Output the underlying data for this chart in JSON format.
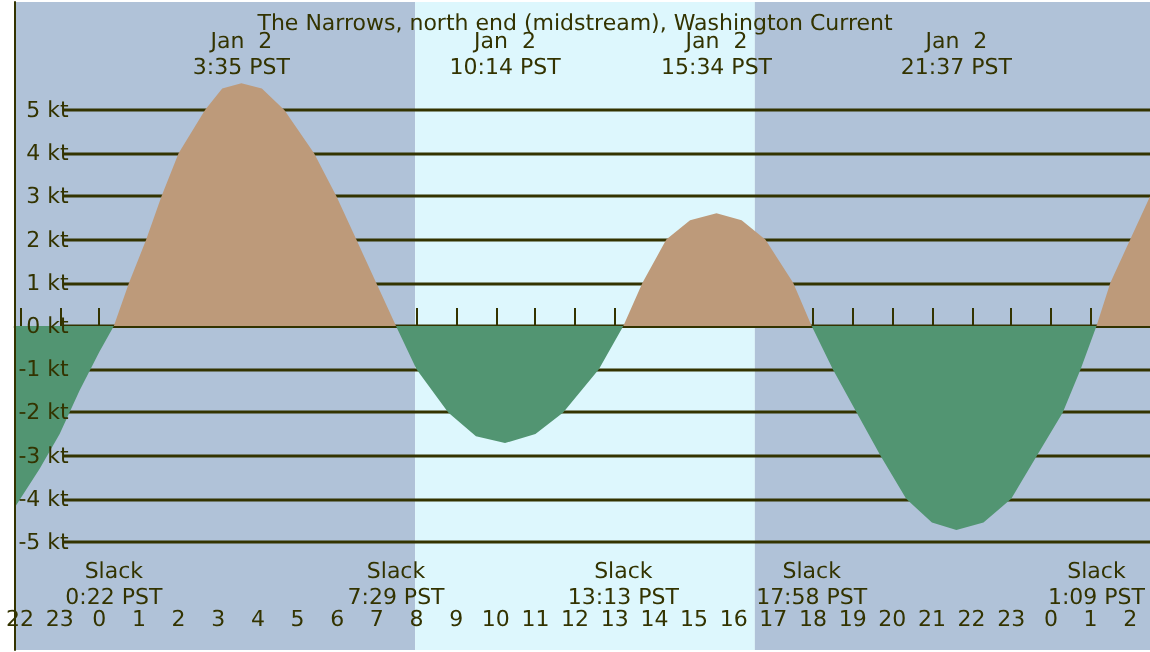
{
  "chart_data": {
    "type": "area",
    "title": "The Narrows, north end (midstream), Washington Current",
    "xlim": [
      "--01-01T21:52",
      "--01-03T02:30"
    ],
    "xticks": [
      {
        "value": "--01-01T22:00",
        "label": "22"
      },
      {
        "value": "--01-01T23:00",
        "label": "23"
      },
      {
        "value": "--01-02T00:00",
        "label": "0"
      },
      {
        "value": "--01-02T01:00",
        "label": "1"
      },
      {
        "value": "--01-02T02:00",
        "label": "2"
      },
      {
        "value": "--01-02T03:00",
        "label": "3"
      },
      {
        "value": "--01-02T04:00",
        "label": "4"
      },
      {
        "value": "--01-02T05:00",
        "label": "5"
      },
      {
        "value": "--01-02T06:00",
        "label": "6"
      },
      {
        "value": "--01-02T07:00",
        "label": "7"
      },
      {
        "value": "--01-02T08:00",
        "label": "8"
      },
      {
        "value": "--01-02T09:00",
        "label": "9"
      },
      {
        "value": "--01-02T10:00",
        "label": "10"
      },
      {
        "value": "--01-02T11:00",
        "label": "11"
      },
      {
        "value": "--01-02T12:00",
        "label": "12"
      },
      {
        "value": "--01-02T13:00",
        "label": "13"
      },
      {
        "value": "--01-02T14:00",
        "label": "14"
      },
      {
        "value": "--01-02T15:00",
        "label": "15"
      },
      {
        "value": "--01-02T16:00",
        "label": "16"
      },
      {
        "value": "--01-02T17:00",
        "label": "17"
      },
      {
        "value": "--01-02T18:00",
        "label": "18"
      },
      {
        "value": "--01-02T19:00",
        "label": "19"
      },
      {
        "value": "--01-02T20:00",
        "label": "20"
      },
      {
        "value": "--01-02T21:00",
        "label": "21"
      },
      {
        "value": "--01-02T22:00",
        "label": "22"
      },
      {
        "value": "--01-02T23:00",
        "label": "23"
      },
      {
        "value": "--01-03T00:00",
        "label": "0"
      },
      {
        "value": "--01-03T01:00",
        "label": "1"
      },
      {
        "value": "--01-03T02:00",
        "label": "2"
      }
    ],
    "ylim": [
      -7.5,
      7.5
    ],
    "yticks": [
      {
        "value": -5,
        "label": "-5 kt"
      },
      {
        "value": -4,
        "label": "-4 kt"
      },
      {
        "value": -3,
        "label": "-3 kt"
      },
      {
        "value": -2,
        "label": "-2 kt"
      },
      {
        "value": -1,
        "label": "-1 kt"
      },
      {
        "value": 0,
        "label": "0 kt"
      },
      {
        "value": 1,
        "label": "1 kt"
      },
      {
        "value": 2,
        "label": "2 kt"
      },
      {
        "value": 3,
        "label": "3 kt"
      },
      {
        "value": 4,
        "label": "4 kt"
      },
      {
        "value": 5,
        "label": "5 kt"
      }
    ],
    "grid": "y",
    "bands": [
      {
        "axis": "x",
        "from": "--01-01T21:52",
        "to": "--01-02T07:58",
        "color": "#b0c2d8"
      },
      {
        "axis": "x",
        "from": "--01-02T07:58",
        "to": "--01-02T16:32",
        "color": "#ddf7fd"
      },
      {
        "axis": "x",
        "from": "--01-02T16:32",
        "to": "--01-03T02:30",
        "color": "#b0c2d8"
      }
    ],
    "series": [
      {
        "color": "#bd9a7a",
        "x": [
          "--01-02T00:22",
          "--01-02T00:45",
          "--01-02T01:11",
          "--01-02T01:34",
          "--01-02T02:00",
          "--01-02T02:40",
          "--01-02T03:06",
          "--01-02T03:35",
          "--01-02T04:06",
          "--01-02T04:40",
          "--01-02T05:25",
          "--01-02T05:59",
          "--01-02T06:29",
          "--01-02T06:59",
          "--01-02T07:29",
          "--01-02T10:00",
          "--01-02T13:13",
          "--01-02T13:42",
          "--01-02T14:18",
          "--01-02T14:54",
          "--01-02T15:34",
          "--01-02T16:12",
          "--01-02T16:48",
          "--01-02T17:30",
          "--01-02T17:58",
          "--01-02T21:00",
          "--01-03T01:09",
          "--01-03T01:30",
          "--01-03T02:00",
          "--01-03T02:30"
        ],
        "values": [
          0,
          1,
          2,
          3,
          4,
          5,
          5.5,
          5.62,
          5.5,
          5,
          4,
          3,
          2,
          1,
          0,
          null,
          0,
          1,
          2,
          2.45,
          2.61,
          2.45,
          2,
          1,
          0,
          null,
          0,
          1,
          2,
          3.0
        ]
      },
      {
        "color": "#529572",
        "x": [
          "--01-01T21:52",
          "--01-01T22:30",
          "--01-01T23:00",
          "--01-01T23:30",
          "--01-02T00:00",
          "--01-02T00:22",
          "--01-02T04:00",
          "--01-02T07:29",
          "--01-02T08:00",
          "--01-02T08:48",
          "--01-02T09:30",
          "--01-02T10:14",
          "--01-02T11:00",
          "--01-02T11:42",
          "--01-02T12:36",
          "--01-02T13:13",
          "--01-02T15:30",
          "--01-02T17:58",
          "--01-02T18:30",
          "--01-02T19:06",
          "--01-02T19:42",
          "--01-02T20:21",
          "--01-02T21:00",
          "--01-02T21:37",
          "--01-02T22:18",
          "--01-02T23:00",
          "--01-02T23:39",
          "--01-03T00:18",
          "--01-03T00:45",
          "--01-03T01:09"
        ],
        "values": [
          -4.2,
          -3.3,
          -2.5,
          -1.5,
          -0.6,
          0,
          null,
          0,
          -1,
          -2,
          -2.55,
          -2.71,
          -2.5,
          -2,
          -1,
          0,
          null,
          0,
          -1,
          -2,
          -3,
          -4,
          -4.55,
          -4.72,
          -4.55,
          -4,
          -3,
          -2,
          -1,
          0
        ]
      }
    ],
    "annotations": [
      "Jan  2\n3:35 PST",
      "Jan  2\n10:14 PST",
      "Jan  2\n15:34 PST",
      "Jan  2\n21:37 PST",
      "Slack\n0:22 PST",
      "Slack\n7:29 PST",
      "Slack\n13:13 PST",
      "Slack\n17:58 PST",
      "Slack\n1:09 PST"
    ]
  }
}
